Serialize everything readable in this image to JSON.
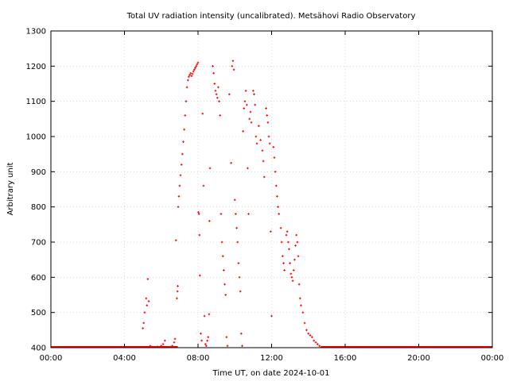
{
  "chart_data": {
    "type": "scatter",
    "title": "Total UV radiation intensity (uncalibrated). Metsähovi Radio Observatory",
    "xlabel": "Time UT, on date 2024-10-01",
    "ylabel": "Arbitrary unit",
    "xlim": [
      0,
      24
    ],
    "ylim": [
      400,
      1300
    ],
    "x_ticks": [
      0,
      4,
      8,
      12,
      16,
      20,
      24
    ],
    "x_tick_labels": [
      "00:00",
      "04:00",
      "08:00",
      "12:00",
      "16:00",
      "20:00",
      "00:00"
    ],
    "y_ticks": [
      400,
      500,
      600,
      700,
      800,
      900,
      1000,
      1100,
      1200,
      1300
    ],
    "y_tick_labels": [
      "400",
      "500",
      "600",
      "700",
      "800",
      "900",
      "1000",
      "1100",
      "1200",
      "1300"
    ],
    "grid": true,
    "marker_color": "#ff0000",
    "series": [
      {
        "x_unit": "hours UT",
        "points": [
          [
            5.0,
            455
          ],
          [
            5.05,
            470
          ],
          [
            5.1,
            500
          ],
          [
            5.18,
            540
          ],
          [
            5.22,
            520
          ],
          [
            5.27,
            595
          ],
          [
            5.32,
            532
          ],
          [
            5.4,
            405
          ],
          [
            5.5,
            402
          ],
          [
            5.8,
            403
          ],
          [
            6.0,
            405
          ],
          [
            6.1,
            410
          ],
          [
            6.2,
            420
          ],
          [
            6.5,
            402
          ],
          [
            6.6,
            405
          ],
          [
            6.7,
            415
          ],
          [
            6.75,
            425
          ],
          [
            6.8,
            705
          ],
          [
            6.85,
            540
          ],
          [
            6.88,
            560
          ],
          [
            6.9,
            575
          ],
          [
            6.92,
            800
          ],
          [
            6.96,
            830
          ],
          [
            7.0,
            860
          ],
          [
            7.05,
            890
          ],
          [
            7.1,
            920
          ],
          [
            7.15,
            950
          ],
          [
            7.2,
            985
          ],
          [
            7.25,
            1020
          ],
          [
            7.3,
            1060
          ],
          [
            7.35,
            1100
          ],
          [
            7.4,
            1140
          ],
          [
            7.45,
            1160
          ],
          [
            7.5,
            1170
          ],
          [
            7.55,
            1175
          ],
          [
            7.6,
            1180
          ],
          [
            7.65,
            1172
          ],
          [
            7.7,
            1178
          ],
          [
            7.75,
            1185
          ],
          [
            7.8,
            1190
          ],
          [
            7.85,
            1195
          ],
          [
            7.9,
            1200
          ],
          [
            7.95,
            1205
          ],
          [
            8.0,
            1210
          ],
          [
            8.02,
            785
          ],
          [
            8.05,
            780
          ],
          [
            8.08,
            720
          ],
          [
            8.1,
            605
          ],
          [
            8.15,
            440
          ],
          [
            8.2,
            420
          ],
          [
            8.25,
            1065
          ],
          [
            8.3,
            860
          ],
          [
            8.35,
            490
          ],
          [
            8.4,
            410
          ],
          [
            8.45,
            405
          ],
          [
            8.5,
            420
          ],
          [
            8.55,
            430
          ],
          [
            8.6,
            495
          ],
          [
            8.62,
            760
          ],
          [
            8.65,
            910
          ],
          [
            8.8,
            1200
          ],
          [
            8.85,
            1180
          ],
          [
            8.9,
            1150
          ],
          [
            8.95,
            1130
          ],
          [
            9.0,
            1120
          ],
          [
            9.05,
            1110
          ],
          [
            9.1,
            1140
          ],
          [
            9.15,
            1100
          ],
          [
            9.2,
            1060
          ],
          [
            9.25,
            780
          ],
          [
            9.3,
            700
          ],
          [
            9.35,
            660
          ],
          [
            9.4,
            620
          ],
          [
            9.45,
            580
          ],
          [
            9.5,
            550
          ],
          [
            9.55,
            430
          ],
          [
            9.6,
            405
          ],
          [
            9.7,
            1120
          ],
          [
            9.8,
            925
          ],
          [
            9.85,
            1200
          ],
          [
            9.9,
            1215
          ],
          [
            9.95,
            1190
          ],
          [
            10.0,
            820
          ],
          [
            10.05,
            780
          ],
          [
            10.1,
            740
          ],
          [
            10.15,
            700
          ],
          [
            10.2,
            640
          ],
          [
            10.25,
            600
          ],
          [
            10.3,
            560
          ],
          [
            10.35,
            440
          ],
          [
            10.4,
            405
          ],
          [
            10.45,
            1015
          ],
          [
            10.5,
            1080
          ],
          [
            10.55,
            1100
          ],
          [
            10.6,
            1130
          ],
          [
            10.65,
            1090
          ],
          [
            10.7,
            910
          ],
          [
            10.75,
            780
          ],
          [
            10.8,
            1050
          ],
          [
            10.85,
            1070
          ],
          [
            10.9,
            1040
          ],
          [
            11.0,
            1130
          ],
          [
            11.05,
            1120
          ],
          [
            11.1,
            1090
          ],
          [
            11.15,
            1000
          ],
          [
            11.2,
            980
          ],
          [
            11.3,
            1030
          ],
          [
            11.4,
            990
          ],
          [
            11.5,
            960
          ],
          [
            11.55,
            930
          ],
          [
            11.6,
            885
          ],
          [
            11.7,
            1080
          ],
          [
            11.75,
            1060
          ],
          [
            11.8,
            1040
          ],
          [
            11.85,
            1000
          ],
          [
            11.9,
            980
          ],
          [
            11.95,
            730
          ],
          [
            12.0,
            490
          ],
          [
            12.1,
            970
          ],
          [
            12.15,
            940
          ],
          [
            12.2,
            900
          ],
          [
            12.25,
            860
          ],
          [
            12.3,
            830
          ],
          [
            12.35,
            800
          ],
          [
            12.4,
            780
          ],
          [
            12.5,
            740
          ],
          [
            12.55,
            700
          ],
          [
            12.6,
            660
          ],
          [
            12.65,
            640
          ],
          [
            12.7,
            620
          ],
          [
            12.8,
            720
          ],
          [
            12.85,
            730
          ],
          [
            12.9,
            700
          ],
          [
            12.95,
            680
          ],
          [
            13.0,
            640
          ],
          [
            13.05,
            610
          ],
          [
            13.1,
            600
          ],
          [
            13.15,
            590
          ],
          [
            13.2,
            620
          ],
          [
            13.25,
            650
          ],
          [
            13.3,
            690
          ],
          [
            13.35,
            720
          ],
          [
            13.4,
            700
          ],
          [
            13.45,
            660
          ],
          [
            13.5,
            580
          ],
          [
            13.55,
            540
          ],
          [
            13.6,
            520
          ],
          [
            13.7,
            500
          ],
          [
            13.8,
            470
          ],
          [
            13.9,
            450
          ],
          [
            14.0,
            440
          ],
          [
            14.1,
            435
          ],
          [
            14.2,
            430
          ],
          [
            14.3,
            420
          ],
          [
            14.4,
            415
          ],
          [
            14.5,
            410
          ],
          [
            14.6,
            405
          ],
          [
            14.7,
            402
          ]
        ]
      }
    ]
  }
}
